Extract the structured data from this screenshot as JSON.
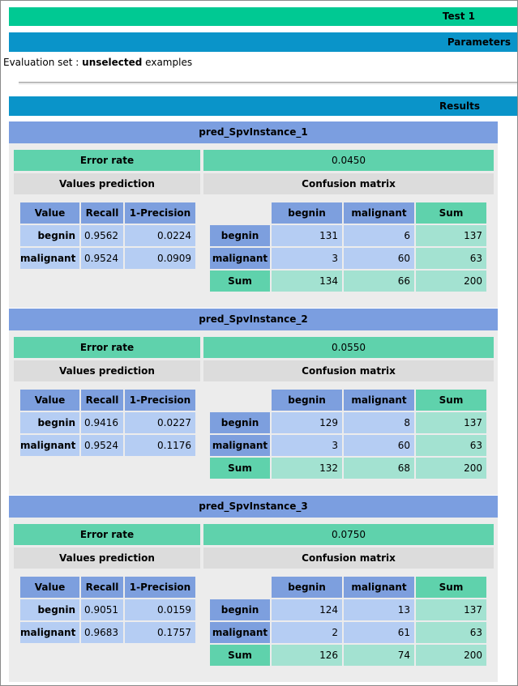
{
  "header": {
    "test_title": "Test 1",
    "parameters_label": "Parameters",
    "results_label": "Results"
  },
  "evaluation": {
    "prefix": "Evaluation set : ",
    "emphasis": "unselected",
    "suffix": " examples"
  },
  "labels": {
    "error_rate": "Error rate",
    "values_prediction": "Values prediction",
    "confusion_matrix": "Confusion matrix",
    "value": "Value",
    "recall": "Recall",
    "one_minus_precision": "1-Precision",
    "sum": "Sum"
  },
  "blocks": [
    {
      "title": "pred_SpvInstance_1",
      "error_rate": "0.0450",
      "rows": [
        {
          "value": "begnin",
          "recall": "0.9562",
          "precision": "0.0224"
        },
        {
          "value": "malignant",
          "recall": "0.9524",
          "precision": "0.0909"
        }
      ],
      "matrix": {
        "cols": [
          "begnin",
          "malignant",
          "Sum"
        ],
        "rows": [
          {
            "label": "begnin",
            "cells": [
              "131",
              "6",
              "137"
            ]
          },
          {
            "label": "malignant",
            "cells": [
              "3",
              "60",
              "63"
            ]
          },
          {
            "label": "Sum",
            "cells": [
              "134",
              "66",
              "200"
            ]
          }
        ]
      }
    },
    {
      "title": "pred_SpvInstance_2",
      "error_rate": "0.0550",
      "rows": [
        {
          "value": "begnin",
          "recall": "0.9416",
          "precision": "0.0227"
        },
        {
          "value": "malignant",
          "recall": "0.9524",
          "precision": "0.1176"
        }
      ],
      "matrix": {
        "cols": [
          "begnin",
          "malignant",
          "Sum"
        ],
        "rows": [
          {
            "label": "begnin",
            "cells": [
              "129",
              "8",
              "137"
            ]
          },
          {
            "label": "malignant",
            "cells": [
              "3",
              "60",
              "63"
            ]
          },
          {
            "label": "Sum",
            "cells": [
              "132",
              "68",
              "200"
            ]
          }
        ]
      }
    },
    {
      "title": "pred_SpvInstance_3",
      "error_rate": "0.0750",
      "rows": [
        {
          "value": "begnin",
          "recall": "0.9051",
          "precision": "0.0159"
        },
        {
          "value": "malignant",
          "recall": "0.9683",
          "precision": "0.1757"
        }
      ],
      "matrix": {
        "cols": [
          "begnin",
          "malignant",
          "Sum"
        ],
        "rows": [
          {
            "label": "begnin",
            "cells": [
              "124",
              "13",
              "137"
            ]
          },
          {
            "label": "malignant",
            "cells": [
              "2",
              "61",
              "63"
            ]
          },
          {
            "label": "Sum",
            "cells": [
              "126",
              "74",
              "200"
            ]
          }
        ]
      }
    }
  ],
  "colors": {
    "test_bar": "#00c993",
    "section_bar": "#0a94c9",
    "block_title": "#7b9ee0",
    "teal": "#5fd2ac",
    "light_teal": "#a3e2d1",
    "blue": "#7d9fde",
    "light_blue": "#b5cdf3",
    "gray": "#dcdcdc"
  }
}
